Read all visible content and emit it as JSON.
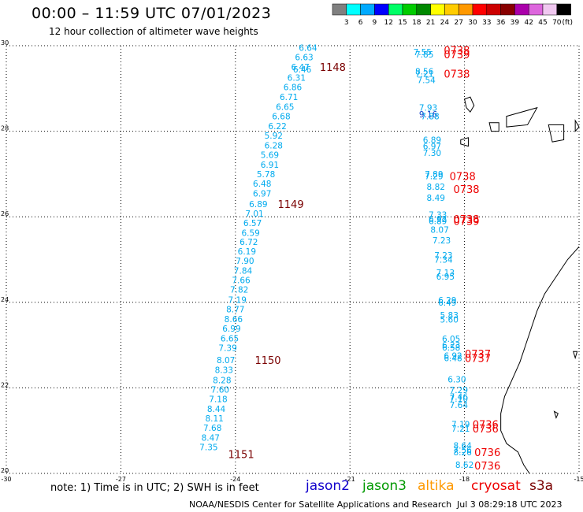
{
  "header": {
    "title": "00:00 – 11:59 UTC 07/01/2023",
    "subtitle": "12 hour collection of altimeter wave heights"
  },
  "legend": {
    "unit": "(ft)",
    "bins": [
      {
        "label": "3",
        "color": "#808080"
      },
      {
        "label": "6",
        "color": "#00ffff"
      },
      {
        "label": "9",
        "color": "#00aaff"
      },
      {
        "label": "12",
        "color": "#0000ff"
      },
      {
        "label": "15",
        "color": "#00ff66"
      },
      {
        "label": "18",
        "color": "#00cc00"
      },
      {
        "label": "21",
        "color": "#008800"
      },
      {
        "label": "24",
        "color": "#ffff00"
      },
      {
        "label": "27",
        "color": "#ffcc00"
      },
      {
        "label": "30",
        "color": "#ff9900"
      },
      {
        "label": "33",
        "color": "#ff0000"
      },
      {
        "label": "36",
        "color": "#cc0000"
      },
      {
        "label": "39",
        "color": "#880000"
      },
      {
        "label": "42",
        "color": "#aa00aa"
      },
      {
        "label": "45",
        "color": "#dd66dd"
      },
      {
        "label": "70",
        "color": "#f0c8f0"
      },
      {
        "label": "",
        "color": "#000000"
      }
    ]
  },
  "axes": {
    "x_ticks": [
      "-30",
      "-27",
      "-24",
      "-21",
      "-18",
      "-15"
    ],
    "y_ticks": [
      "30",
      "28",
      "26",
      "24",
      "22",
      "20"
    ],
    "lon_range": [
      -30,
      -15
    ],
    "lat_range": [
      20,
      30
    ]
  },
  "colors": {
    "wave": "#00aaee",
    "wave_dark": "#1144cc",
    "time_track_a": "#7a0000",
    "time_track_b": "#ee0000",
    "coast": "#000000"
  },
  "track_a": {
    "values": [
      {
        "lat": 29.95,
        "lon": -22.1,
        "v": "6.64"
      },
      {
        "lat": 29.73,
        "lon": -22.2,
        "v": "6.63"
      },
      {
        "lat": 29.5,
        "lon": -22.3,
        "v": "6.47"
      },
      {
        "lat": 29.45,
        "lon": -22.25,
        "v": "6.46"
      },
      {
        "lat": 29.25,
        "lon": -22.4,
        "v": "6.31"
      },
      {
        "lat": 29.03,
        "lon": -22.5,
        "v": "6.86"
      },
      {
        "lat": 28.8,
        "lon": -22.6,
        "v": "6.71"
      },
      {
        "lat": 28.57,
        "lon": -22.7,
        "v": "6.65"
      },
      {
        "lat": 28.35,
        "lon": -22.8,
        "v": "6.68"
      },
      {
        "lat": 28.12,
        "lon": -22.9,
        "v": "6.22"
      },
      {
        "lat": 27.9,
        "lon": -23.0,
        "v": "5.92"
      },
      {
        "lat": 27.67,
        "lon": -23.0,
        "v": "6.28"
      },
      {
        "lat": 27.45,
        "lon": -23.1,
        "v": "5.69"
      },
      {
        "lat": 27.22,
        "lon": -23.1,
        "v": "6.91"
      },
      {
        "lat": 27.0,
        "lon": -23.2,
        "v": "5.78"
      },
      {
        "lat": 26.78,
        "lon": -23.3,
        "v": "6.48"
      },
      {
        "lat": 26.55,
        "lon": -23.3,
        "v": "6.97"
      },
      {
        "lat": 26.3,
        "lon": -23.4,
        "v": "6.89"
      },
      {
        "lat": 26.08,
        "lon": -23.5,
        "v": "7.01"
      },
      {
        "lat": 25.86,
        "lon": -23.55,
        "v": "6.57"
      },
      {
        "lat": 25.63,
        "lon": -23.6,
        "v": "6.59"
      },
      {
        "lat": 25.41,
        "lon": -23.65,
        "v": "6.72"
      },
      {
        "lat": 25.19,
        "lon": -23.7,
        "v": "6.19"
      },
      {
        "lat": 24.97,
        "lon": -23.75,
        "v": "7.90"
      },
      {
        "lat": 24.74,
        "lon": -23.8,
        "v": "7.84"
      },
      {
        "lat": 24.52,
        "lon": -23.85,
        "v": "7.66"
      },
      {
        "lat": 24.3,
        "lon": -23.9,
        "v": "7.82"
      },
      {
        "lat": 24.06,
        "lon": -23.95,
        "v": "7.19"
      },
      {
        "lat": 23.84,
        "lon": -24.0,
        "v": "8.77"
      },
      {
        "lat": 23.61,
        "lon": -24.05,
        "v": "8.66"
      },
      {
        "lat": 23.39,
        "lon": -24.1,
        "v": "6.99"
      },
      {
        "lat": 23.16,
        "lon": -24.15,
        "v": "6.65"
      },
      {
        "lat": 22.94,
        "lon": -24.2,
        "v": "7.39"
      },
      {
        "lat": 22.65,
        "lon": -24.25,
        "v": "8.07"
      },
      {
        "lat": 22.42,
        "lon": -24.3,
        "v": "8.33"
      },
      {
        "lat": 22.18,
        "lon": -24.35,
        "v": "8.28"
      },
      {
        "lat": 21.96,
        "lon": -24.4,
        "v": "7.60"
      },
      {
        "lat": 21.74,
        "lon": -24.45,
        "v": "7.18"
      },
      {
        "lat": 21.51,
        "lon": -24.5,
        "v": "8.44"
      },
      {
        "lat": 21.29,
        "lon": -24.55,
        "v": "8.11"
      },
      {
        "lat": 21.07,
        "lon": -24.6,
        "v": "7.68"
      },
      {
        "lat": 20.84,
        "lon": -24.65,
        "v": "8.47"
      },
      {
        "lat": 20.62,
        "lon": -24.7,
        "v": "7.35"
      }
    ],
    "times": [
      {
        "lat": 29.5,
        "lon": -21.45,
        "t": "1148"
      },
      {
        "lat": 26.3,
        "lon": -22.55,
        "t": "1149"
      },
      {
        "lat": 22.65,
        "lon": -23.15,
        "t": "1150"
      },
      {
        "lat": 20.45,
        "lon": -23.85,
        "t": "1151"
      }
    ]
  },
  "track_b": {
    "values": [
      {
        "lat": 29.85,
        "lon": -19.1,
        "v": "7.55"
      },
      {
        "lat": 29.8,
        "lon": -19.05,
        "v": "7.85"
      },
      {
        "lat": 29.4,
        "lon": -19.05,
        "v": "8.56"
      },
      {
        "lat": 29.35,
        "lon": -19.05,
        "v": "7.21"
      },
      {
        "lat": 29.2,
        "lon": -19.0,
        "v": "7.54"
      },
      {
        "lat": 28.55,
        "lon": -18.95,
        "v": "7.93"
      },
      {
        "lat": 28.4,
        "lon": -18.95,
        "v": "9.16",
        "dark": true
      },
      {
        "lat": 28.35,
        "lon": -18.9,
        "v": "7.88"
      },
      {
        "lat": 27.8,
        "lon": -18.85,
        "v": "6.89"
      },
      {
        "lat": 27.65,
        "lon": -18.85,
        "v": "6.97"
      },
      {
        "lat": 27.5,
        "lon": -18.85,
        "v": "7.30"
      },
      {
        "lat": 27.0,
        "lon": -18.8,
        "v": "7.89"
      },
      {
        "lat": 26.95,
        "lon": -18.8,
        "v": "7.29"
      },
      {
        "lat": 26.7,
        "lon": -18.75,
        "v": "8.82"
      },
      {
        "lat": 26.45,
        "lon": -18.75,
        "v": "8.49"
      },
      {
        "lat": 26.05,
        "lon": -18.7,
        "v": "7.33"
      },
      {
        "lat": 25.95,
        "lon": -18.7,
        "v": "6.92"
      },
      {
        "lat": 25.9,
        "lon": -18.7,
        "v": "6.89"
      },
      {
        "lat": 25.7,
        "lon": -18.65,
        "v": "8.07"
      },
      {
        "lat": 25.45,
        "lon": -18.6,
        "v": "7.23"
      },
      {
        "lat": 25.1,
        "lon": -18.55,
        "v": "7.23"
      },
      {
        "lat": 25.0,
        "lon": -18.55,
        "v": "7.34"
      },
      {
        "lat": 24.7,
        "lon": -18.5,
        "v": "7.13"
      },
      {
        "lat": 24.6,
        "lon": -18.5,
        "v": "6.95"
      },
      {
        "lat": 24.05,
        "lon": -18.45,
        "v": "6.29"
      },
      {
        "lat": 24.0,
        "lon": -18.45,
        "v": "6.49"
      },
      {
        "lat": 23.7,
        "lon": -18.4,
        "v": "5.83"
      },
      {
        "lat": 23.6,
        "lon": -18.4,
        "v": "5.60"
      },
      {
        "lat": 23.15,
        "lon": -18.35,
        "v": "6.05"
      },
      {
        "lat": 23.0,
        "lon": -18.35,
        "v": "6.23"
      },
      {
        "lat": 22.95,
        "lon": -18.35,
        "v": "6.58"
      },
      {
        "lat": 22.75,
        "lon": -18.3,
        "v": "6.92"
      },
      {
        "lat": 22.7,
        "lon": -18.3,
        "v": "6.48"
      },
      {
        "lat": 22.2,
        "lon": -18.2,
        "v": "6.30"
      },
      {
        "lat": 21.95,
        "lon": -18.15,
        "v": "7.29"
      },
      {
        "lat": 21.8,
        "lon": -18.15,
        "v": "7.46"
      },
      {
        "lat": 21.75,
        "lon": -18.15,
        "v": "7.10"
      },
      {
        "lat": 21.6,
        "lon": -18.15,
        "v": "7.64"
      },
      {
        "lat": 21.15,
        "lon": -18.1,
        "v": "7.19"
      },
      {
        "lat": 21.05,
        "lon": -18.1,
        "v": "7.21"
      },
      {
        "lat": 20.65,
        "lon": -18.05,
        "v": "8.64"
      },
      {
        "lat": 20.55,
        "lon": -18.05,
        "v": "7.56"
      },
      {
        "lat": 20.5,
        "lon": -18.05,
        "v": "8.26"
      },
      {
        "lat": 20.2,
        "lon": -18.0,
        "v": "8.62"
      }
    ],
    "times": [
      {
        "lat": 29.9,
        "lon": -18.2,
        "t": "0738"
      },
      {
        "lat": 29.8,
        "lon": -18.2,
        "t": "0739"
      },
      {
        "lat": 29.35,
        "lon": -18.2,
        "t": "0738"
      },
      {
        "lat": 26.95,
        "lon": -18.05,
        "t": "0738"
      },
      {
        "lat": 26.65,
        "lon": -17.95,
        "t": "0738"
      },
      {
        "lat": 25.95,
        "lon": -17.95,
        "t": "0738"
      },
      {
        "lat": 25.9,
        "lon": -17.95,
        "t": "0739"
      },
      {
        "lat": 22.8,
        "lon": -17.65,
        "t": "0737"
      },
      {
        "lat": 22.7,
        "lon": -17.65,
        "t": "0737"
      },
      {
        "lat": 21.15,
        "lon": -17.45,
        "t": "0736"
      },
      {
        "lat": 21.05,
        "lon": -17.45,
        "t": "0736"
      },
      {
        "lat": 20.5,
        "lon": -17.4,
        "t": "0736"
      },
      {
        "lat": 20.18,
        "lon": -17.4,
        "t": "0736"
      }
    ]
  },
  "note": "note: 1) Time is in UTC; 2) SWH is in feet",
  "satellites": [
    {
      "name": "jason2",
      "color": "#1100cc"
    },
    {
      "name": "jason3",
      "color": "#009900"
    },
    {
      "name": "altika",
      "color": "#ff9900"
    },
    {
      "name": "cryosat",
      "color": "#ee0000"
    },
    {
      "name": "s3a",
      "color": "#7a0000"
    }
  ],
  "footer": {
    "credit": "NOAA/NESDIS Center for Satellite Applications and Research",
    "timestamp": "Jul  3 08:29:18 UTC 2023"
  }
}
